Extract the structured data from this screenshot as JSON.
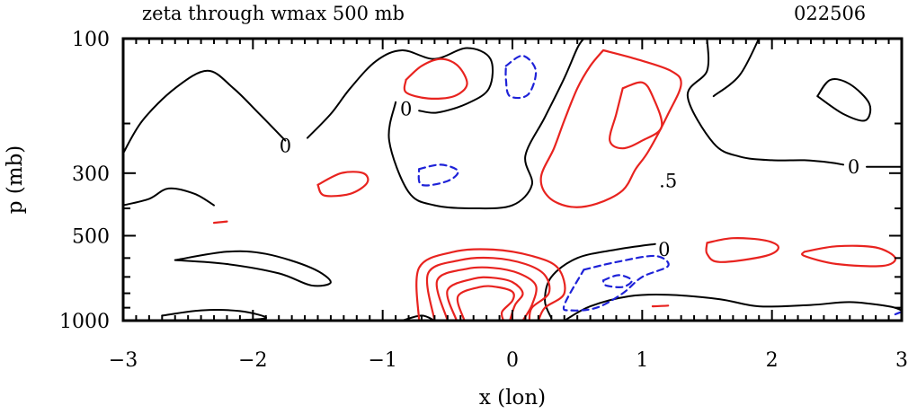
{
  "chart_data": {
    "type": "contour",
    "title": "zeta through wmax 500 mb",
    "date_label": "022506",
    "xlabel": "x (lon)",
    "ylabel": "p (mb)",
    "xlim": [
      -3,
      3
    ],
    "ylim": [
      1000,
      100
    ],
    "y_scale": "log",
    "x_ticks": [
      -3,
      -2,
      -1,
      0,
      1,
      2,
      3
    ],
    "x_tick_labels": [
      "−3",
      "−2",
      "−1",
      "0",
      "1",
      "2",
      "3"
    ],
    "y_ticks": [
      100,
      300,
      500,
      1000
    ],
    "y_tick_labels": [
      "100",
      "300",
      "500",
      "1000"
    ],
    "grid": false,
    "colors": {
      "zero": "#000000",
      "positive": "#e8231f",
      "negative": "#1e22d8"
    },
    "contour_labels": [
      {
        "text": "0",
        "x": -1.75,
        "p": 240
      },
      {
        "text": "0",
        "x": -0.82,
        "p": 178
      },
      {
        "text": "0",
        "x": 2.63,
        "p": 285
      },
      {
        "text": "0",
        "x": 1.17,
        "p": 560
      },
      {
        "text": ".5",
        "x": 1.2,
        "p": 320
      }
    ],
    "contours": [
      {
        "name": "zero",
        "style": "solid",
        "points": [
          [
            -3,
            255
          ],
          [
            -2.85,
            195
          ],
          [
            -2.6,
            150
          ],
          [
            -2.35,
            130
          ],
          [
            -2.15,
            150
          ],
          [
            -1.95,
            185
          ],
          [
            -1.75,
            230
          ]
        ]
      },
      {
        "name": "zero",
        "style": "solid",
        "points": [
          [
            -1.58,
            225
          ],
          [
            -1.4,
            185
          ],
          [
            -1.25,
            150
          ],
          [
            -1.05,
            120
          ],
          [
            -0.85,
            110
          ],
          [
            -0.6,
            118
          ],
          [
            -0.35,
            108
          ],
          [
            -0.17,
            118
          ],
          [
            -0.18,
            150
          ],
          [
            -0.35,
            170
          ],
          [
            -0.58,
            183
          ],
          [
            -0.72,
            180
          ]
        ]
      },
      {
        "name": "zero",
        "style": "solid",
        "points": [
          [
            -0.9,
            168
          ],
          [
            -0.95,
            230
          ],
          [
            -0.8,
            350
          ],
          [
            -0.6,
            390
          ],
          [
            -0.3,
            400
          ],
          [
            0,
            390
          ],
          [
            0.15,
            330
          ],
          [
            0.1,
            260
          ],
          [
            0.25,
            190
          ],
          [
            0.4,
            138
          ],
          [
            0.5,
            108
          ],
          [
            0.55,
            100
          ]
        ]
      },
      {
        "name": "zero",
        "style": "solid",
        "points": [
          [
            -3,
            390
          ],
          [
            -2.8,
            370
          ],
          [
            -2.65,
            340
          ],
          [
            -2.45,
            355
          ],
          [
            -2.3,
            390
          ]
        ]
      },
      {
        "name": "zero",
        "style": "solid",
        "points": [
          [
            1.5,
            100
          ],
          [
            1.5,
            130
          ],
          [
            1.35,
            160
          ],
          [
            1.55,
            235
          ],
          [
            1.75,
            262
          ],
          [
            2.0,
            270
          ],
          [
            2.25,
            270
          ],
          [
            2.45,
            275
          ],
          [
            2.55,
            280
          ]
        ]
      },
      {
        "name": "zero",
        "style": "solid",
        "points": [
          [
            2.73,
            285
          ],
          [
            3,
            285
          ]
        ]
      },
      {
        "name": "zero",
        "style": "solid",
        "points": [
          [
            1.9,
            100
          ],
          [
            1.75,
            135
          ],
          [
            1.55,
            160
          ]
        ]
      },
      {
        "name": "zero",
        "style": "solid",
        "points": [
          [
            2.35,
            160
          ],
          [
            2.45,
            140
          ],
          [
            2.6,
            145
          ],
          [
            2.75,
            170
          ],
          [
            2.72,
            195
          ],
          [
            2.55,
            185
          ],
          [
            2.35,
            160
          ]
        ]
      },
      {
        "name": "zero",
        "style": "solid",
        "points": [
          [
            -2.6,
            610
          ],
          [
            -2.2,
            570
          ],
          [
            -1.9,
            580
          ],
          [
            -1.55,
            650
          ],
          [
            -1.4,
            730
          ],
          [
            -1.55,
            750
          ],
          [
            -1.8,
            680
          ],
          [
            -2.2,
            630
          ],
          [
            -2.6,
            610
          ]
        ]
      },
      {
        "name": "zero",
        "style": "solid",
        "points": [
          [
            1.1,
            535
          ],
          [
            0.8,
            560
          ],
          [
            0.5,
            600
          ],
          [
            0.3,
            700
          ],
          [
            0.25,
            850
          ],
          [
            0.3,
            980
          ]
        ]
      },
      {
        "name": "zero",
        "style": "solid",
        "points": [
          [
            0.4,
            1000
          ],
          [
            0.6,
            890
          ],
          [
            0.9,
            820
          ],
          [
            1.2,
            810
          ],
          [
            1.6,
            840
          ],
          [
            1.9,
            890
          ],
          [
            2.3,
            880
          ],
          [
            2.6,
            860
          ],
          [
            2.9,
            890
          ],
          [
            3,
            920
          ]
        ]
      },
      {
        "name": "zero",
        "style": "solid",
        "points": [
          [
            -2.7,
            960
          ],
          [
            -2.4,
            920
          ],
          [
            -2.1,
            925
          ],
          [
            -1.9,
            980
          ],
          [
            -2.2,
            1000
          ]
        ]
      },
      {
        "name": "zero",
        "style": "solid",
        "points": [
          [
            -0.85,
            1000
          ],
          [
            -0.7,
            960
          ],
          [
            -0.6,
            1000
          ]
        ]
      },
      {
        "name": "positive",
        "style": "solid",
        "points": [
          [
            -0.82,
            140
          ],
          [
            -0.7,
            125
          ],
          [
            -0.55,
            118
          ],
          [
            -0.42,
            125
          ],
          [
            -0.35,
            145
          ],
          [
            -0.45,
            160
          ],
          [
            -0.65,
            163
          ],
          [
            -0.82,
            155
          ],
          [
            -0.82,
            140
          ]
        ]
      },
      {
        "name": "positive",
        "style": "solid",
        "points": [
          [
            0.7,
            110
          ],
          [
            0.95,
            118
          ],
          [
            1.22,
            130
          ],
          [
            1.3,
            145
          ],
          [
            1.2,
            185
          ],
          [
            1.05,
            250
          ],
          [
            0.95,
            290
          ],
          [
            0.85,
            345
          ],
          [
            0.65,
            385
          ],
          [
            0.45,
            395
          ],
          [
            0.28,
            365
          ],
          [
            0.22,
            310
          ],
          [
            0.32,
            245
          ],
          [
            0.4,
            195
          ],
          [
            0.5,
            150
          ],
          [
            0.6,
            125
          ],
          [
            0.7,
            110
          ]
        ]
      },
      {
        "name": "positive",
        "style": "solid",
        "points": [
          [
            0.85,
            150
          ],
          [
            1.0,
            143
          ],
          [
            1.08,
            160
          ],
          [
            1.15,
            205
          ],
          [
            1.0,
            230
          ],
          [
            0.85,
            245
          ],
          [
            0.75,
            230
          ],
          [
            0.8,
            185
          ],
          [
            0.85,
            150
          ]
        ]
      },
      {
        "name": "positive",
        "style": "solid",
        "points": [
          [
            -1.5,
            330
          ],
          [
            -1.32,
            300
          ],
          [
            -1.15,
            300
          ],
          [
            -1.12,
            325
          ],
          [
            -1.25,
            355
          ],
          [
            -1.45,
            360
          ],
          [
            -1.5,
            330
          ]
        ]
      },
      {
        "name": "positive",
        "style": "solid",
        "points": [
          [
            -2.3,
            450
          ],
          [
            -2.2,
            445
          ]
        ]
      },
      {
        "name": "positive",
        "style": "solid",
        "points": [
          [
            1.5,
            530
          ],
          [
            1.7,
            510
          ],
          [
            1.95,
            520
          ],
          [
            2.05,
            550
          ],
          [
            1.95,
            590
          ],
          [
            1.6,
            620
          ],
          [
            1.5,
            580
          ],
          [
            1.5,
            530
          ]
        ]
      },
      {
        "name": "positive",
        "style": "solid",
        "points": [
          [
            2.25,
            570
          ],
          [
            2.5,
            545
          ],
          [
            2.8,
            550
          ],
          [
            2.95,
            600
          ],
          [
            2.85,
            640
          ],
          [
            2.5,
            630
          ],
          [
            2.25,
            590
          ],
          [
            2.25,
            570
          ]
        ]
      },
      {
        "name": "positive",
        "style": "solid",
        "points": [
          [
            1.08,
            890
          ],
          [
            1.2,
            885
          ]
        ]
      },
      {
        "name": "positive",
        "style": "solid",
        "points": [
          [
            -0.72,
            1000
          ],
          [
            -0.72,
            650
          ],
          [
            -0.45,
            570
          ],
          [
            -0.15,
            560
          ],
          [
            0.15,
            590
          ],
          [
            0.35,
            650
          ],
          [
            0.4,
            800
          ],
          [
            0.25,
            900
          ],
          [
            0.2,
            1000
          ]
        ]
      },
      {
        "name": "positive",
        "style": "solid",
        "points": [
          [
            -0.6,
            1000
          ],
          [
            -0.65,
            680
          ],
          [
            -0.4,
            610
          ],
          [
            -0.15,
            600
          ],
          [
            0.1,
            630
          ],
          [
            0.25,
            690
          ],
          [
            0.28,
            800
          ],
          [
            0.15,
            900
          ],
          [
            0.13,
            1000
          ]
        ]
      },
      {
        "name": "positive",
        "style": "solid",
        "points": [
          [
            -0.5,
            1000
          ],
          [
            -0.58,
            720
          ],
          [
            -0.35,
            655
          ],
          [
            -0.15,
            650
          ],
          [
            0.05,
            680
          ],
          [
            0.18,
            750
          ],
          [
            0.15,
            880
          ],
          [
            0.08,
            1000
          ]
        ]
      },
      {
        "name": "positive",
        "style": "solid",
        "points": [
          [
            -0.43,
            1000
          ],
          [
            -0.5,
            780
          ],
          [
            -0.3,
            710
          ],
          [
            -0.15,
            705
          ],
          [
            0,
            730
          ],
          [
            0.08,
            800
          ],
          [
            0.02,
            880
          ],
          [
            -0.02,
            1000
          ]
        ]
      },
      {
        "name": "positive",
        "style": "solid",
        "points": [
          [
            -0.37,
            1000
          ],
          [
            -0.42,
            820
          ],
          [
            -0.25,
            760
          ],
          [
            -0.12,
            760
          ],
          [
            0,
            790
          ],
          [
            0,
            850
          ],
          [
            -0.08,
            930
          ],
          [
            -0.07,
            1000
          ]
        ]
      },
      {
        "name": "negative",
        "style": "dashed",
        "points": [
          [
            -0.05,
            125
          ],
          [
            0.08,
            115
          ],
          [
            0.18,
            130
          ],
          [
            0.12,
            158
          ],
          [
            -0.02,
            160
          ],
          [
            -0.05,
            140
          ],
          [
            -0.05,
            125
          ]
        ]
      },
      {
        "name": "negative",
        "style": "dashed",
        "points": [
          [
            -0.72,
            290
          ],
          [
            -0.55,
            280
          ],
          [
            -0.42,
            295
          ],
          [
            -0.5,
            320
          ],
          [
            -0.7,
            330
          ],
          [
            -0.72,
            290
          ]
        ]
      },
      {
        "name": "negative",
        "style": "dashed",
        "points": [
          [
            0.55,
            660
          ],
          [
            0.8,
            620
          ],
          [
            1.1,
            590
          ],
          [
            1.2,
            640
          ],
          [
            1.0,
            700
          ],
          [
            0.85,
            800
          ],
          [
            0.65,
            900
          ],
          [
            0.45,
            920
          ],
          [
            0.4,
            880
          ],
          [
            0.55,
            660
          ]
        ]
      },
      {
        "name": "negative",
        "style": "dashed",
        "points": [
          [
            0.7,
            720
          ],
          [
            0.82,
            690
          ],
          [
            0.92,
            720
          ],
          [
            0.85,
            760
          ],
          [
            0.72,
            750
          ],
          [
            0.7,
            720
          ]
        ]
      },
      {
        "name": "negative",
        "style": "dashed",
        "points": [
          [
            2.95,
            950
          ],
          [
            3,
            930
          ]
        ]
      }
    ]
  }
}
